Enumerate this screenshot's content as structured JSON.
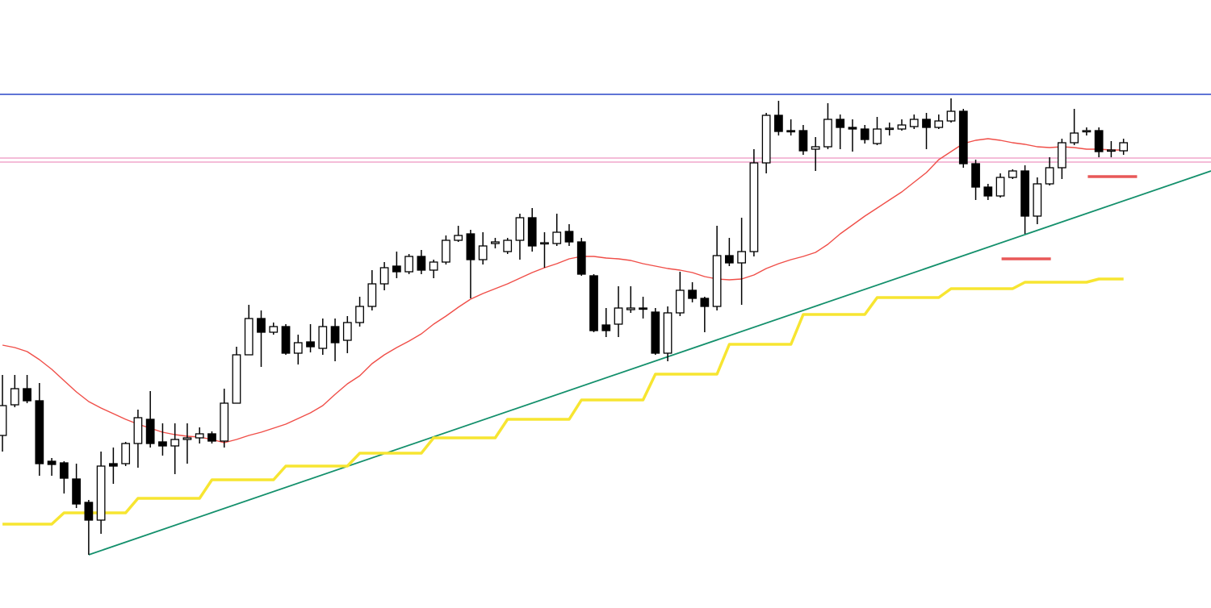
{
  "chart_data": {
    "type": "candlestick",
    "xlim": [
      -0.2,
      98.1
    ],
    "ylim": [
      0,
      754
    ],
    "up_color": "#ffffff",
    "down_color": "#000000",
    "wick_color": "#000000",
    "open": [
      214,
      252,
      272,
      257,
      182,
      180,
      160,
      131,
      109,
      179,
      179,
      204,
      234,
      206,
      201,
      209,
      211,
      216,
      207,
      254,
      314,
      359,
      342,
      349,
      316,
      330,
      322,
      349,
      332,
      354,
      374,
      402,
      424,
      417,
      436,
      419,
      429,
      456,
      464,
      432,
      452,
      442,
      456,
      484,
      452,
      452,
      467,
      454,
      412,
      351,
      352,
      370,
      372,
      367,
      316,
      366,
      394,
      384,
      374,
      437,
      428,
      442,
      552,
      611,
      592,
      592,
      569,
      572,
      606,
      596,
      594,
      576,
      594,
      594,
      597,
      606,
      596,
      604,
      616,
      551,
      522,
      511,
      534,
      542,
      486,
      526,
      546,
      577,
      591,
      592,
      567,
      567
    ],
    "high": [
      289,
      289,
      289,
      279,
      186,
      182,
      179,
      134,
      194,
      199,
      206,
      246,
      269,
      229,
      229,
      229,
      224,
      219,
      272,
      324,
      376,
      369,
      354,
      352,
      339,
      352,
      359,
      359,
      362,
      386,
      419,
      429,
      442,
      439,
      444,
      432,
      462,
      474,
      469,
      466,
      459,
      459,
      489,
      496,
      466,
      489,
      476,
      459,
      414,
      372,
      399,
      399,
      386,
      372,
      374,
      417,
      404,
      386,
      474,
      459,
      484,
      569,
      614,
      629,
      606,
      599,
      584,
      626,
      612,
      606,
      599,
      609,
      602,
      606,
      612,
      614,
      612,
      632,
      619,
      556,
      526,
      539,
      544,
      549,
      534,
      559,
      582,
      619,
      596,
      596,
      579,
      582
    ],
    "low": [
      194,
      249,
      254,
      164,
      164,
      142,
      124,
      66,
      92,
      154,
      176,
      174,
      199,
      189,
      166,
      179,
      204,
      204,
      199,
      254,
      314,
      299,
      339,
      314,
      302,
      317,
      314,
      306,
      316,
      349,
      369,
      394,
      409,
      414,
      414,
      409,
      426,
      454,
      384,
      426,
      446,
      439,
      432,
      442,
      422,
      449,
      449,
      412,
      342,
      336,
      336,
      366,
      359,
      314,
      306,
      362,
      379,
      342,
      369,
      424,
      376,
      436,
      539,
      586,
      586,
      562,
      542,
      569,
      569,
      566,
      576,
      574,
      586,
      592,
      594,
      569,
      594,
      602,
      546,
      506,
      506,
      509,
      532,
      464,
      476,
      524,
      532,
      574,
      586,
      559,
      559,
      562
    ],
    "close": [
      251,
      272,
      257,
      179,
      178,
      161,
      129,
      109,
      176,
      176,
      204,
      236,
      204,
      201,
      209,
      211,
      216,
      207,
      254,
      314,
      359,
      342,
      349,
      316,
      329,
      324,
      349,
      329,
      354,
      374,
      402,
      422,
      417,
      436,
      419,
      429,
      456,
      462,
      432,
      449,
      454,
      456,
      484,
      449,
      453,
      466,
      454,
      414,
      344,
      344,
      372,
      372,
      371,
      316,
      366,
      394,
      384,
      374,
      437,
      428,
      442,
      552,
      611,
      591,
      591,
      567,
      572,
      606,
      596,
      594,
      581,
      594,
      595,
      599,
      606,
      596,
      604,
      616,
      551,
      522,
      511,
      534,
      542,
      486,
      526,
      546,
      577,
      589,
      592,
      566,
      568,
      577
    ],
    "ma": {
      "color": "#f04e48",
      "values": [
        326,
        323,
        318,
        308,
        296,
        282,
        268,
        256,
        248,
        241,
        234,
        228,
        223,
        218,
        215,
        213,
        212,
        209,
        205,
        209,
        214,
        218,
        223,
        228,
        235,
        242,
        251,
        265,
        278,
        288,
        303,
        314,
        323,
        331,
        340,
        352,
        362,
        373,
        383,
        390,
        396,
        402,
        409,
        416,
        422,
        427,
        433,
        436,
        436,
        434,
        433,
        431,
        427,
        424,
        421,
        419,
        416,
        411,
        408,
        407,
        408,
        413,
        421,
        427,
        432,
        436,
        441,
        451,
        464,
        475,
        486,
        496,
        506,
        516,
        528,
        540,
        556,
        566,
        576,
        580,
        582,
        580,
        577,
        575,
        572,
        571,
        572,
        571,
        569,
        569,
        568,
        568
      ]
    },
    "stop": {
      "color": "#f7e531",
      "values": [
        104,
        104,
        104,
        104,
        104,
        118,
        118,
        118,
        118,
        118,
        118,
        136,
        136,
        136,
        136,
        136,
        136,
        159,
        159,
        159,
        159,
        159,
        159,
        176,
        176,
        176,
        176,
        176,
        176,
        192,
        192,
        192,
        192,
        192,
        192,
        211,
        211,
        211,
        211,
        211,
        211,
        234,
        234,
        234,
        234,
        234,
        234,
        258,
        258,
        258,
        258,
        258,
        258,
        290,
        290,
        290,
        290,
        290,
        290,
        327,
        327,
        327,
        327,
        327,
        327,
        364,
        364,
        364,
        364,
        364,
        364,
        385,
        385,
        385,
        385,
        385,
        385,
        396,
        396,
        396,
        396,
        396,
        396,
        404,
        404,
        404,
        404,
        404,
        404,
        408,
        408,
        408
      ]
    },
    "trendline": {
      "color": "#14906c",
      "x": [
        7,
        98.1
      ],
      "values": [
        66,
        542
      ]
    },
    "hlines": [
      {
        "color": "#2b46c8",
        "value": 637
      },
      {
        "color": "#f0a6cc",
        "value": 558
      },
      {
        "color": "#f0a6cc",
        "value": 553
      }
    ],
    "segments": [
      {
        "color": "#e85858",
        "value": 535,
        "x": [
          88.1,
          92.1
        ]
      },
      {
        "color": "#e85858",
        "value": 433,
        "x": [
          81.1,
          85.1
        ]
      }
    ]
  }
}
